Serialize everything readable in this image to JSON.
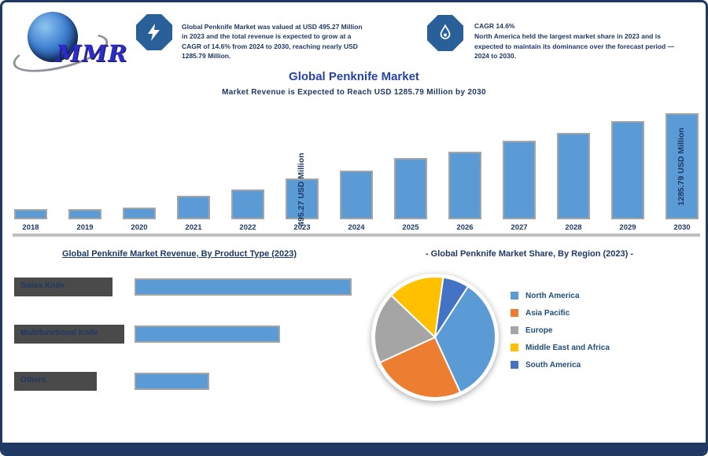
{
  "logo": {
    "text": "MMR"
  },
  "header": {
    "stat1": {
      "icon": "lightning-icon",
      "text": "Global Penknife Market was valued at USD 495.27 Million in 2023 and the total revenue is expected to grow at a CAGR of 14.6% from 2024 to 2030, reaching nearly USD 1285.79 Million."
    },
    "stat2": {
      "icon": "flame-icon",
      "line1": "CAGR 14.6%",
      "text": "North America held the largest market share in 2023 and is expected to maintain its dominance over the forecast period — 2024 to 2030."
    }
  },
  "title": "Global Penknife Market",
  "subtitle": "Market Revenue is Expected to Reach USD 1285.79 Million by 2030",
  "sections": {
    "left_title": "Global Penknife Market Revenue, By Product Type (2023)",
    "right_title": "- Global Penknife Market Share, By Region (2023) -"
  },
  "colors": {
    "bar_fill": "#5B9BD5",
    "bar_border": "#A5A5A5",
    "navy_text": "#1F3864",
    "title_blue": "#2743A5",
    "legend_text": "#1F4E79",
    "badge_blue": "#2A6099",
    "frame_navy": "#1F3864"
  },
  "chart_data": [
    {
      "type": "bar",
      "title": "Global Penknife Market",
      "subtitle": "Market Revenue is Expected to Reach USD 1285.79 Million by 2030",
      "categories": [
        "2018",
        "2019",
        "2020",
        "2021",
        "2022",
        "2023",
        "2024",
        "2025",
        "2026",
        "2027",
        "2028",
        "2029",
        "2030"
      ],
      "values": [
        124,
        125,
        143,
        286,
        362,
        495.27,
        590,
        743,
        819,
        952,
        1047,
        1190,
        1285.79
      ],
      "unit": "USD Million",
      "value_labels": {
        "2023": "495.27 USD Million",
        "2030": "1285.79 USD Million"
      },
      "ylim": [
        0,
        1300
      ],
      "bar_color": "#5B9BD5",
      "grid": false
    },
    {
      "type": "bar",
      "orientation": "horizontal",
      "title": "Global Penknife Market Revenue, By Product Type (2023)",
      "categories": [
        "Swiss Knife",
        "Multifunctional Knife",
        "Others"
      ],
      "values": [
        45,
        30,
        15
      ],
      "unit": "percent share (estimated from bar lengths, not labeled in image)",
      "bar_color": "#5B9BD5"
    },
    {
      "type": "pie",
      "title": "- Global Penknife Market Share, By Region (2023) -",
      "labels": [
        "North America",
        "Asia Pacific",
        "Europe",
        "Middle East and Africa",
        "South America"
      ],
      "values": [
        34,
        25,
        19,
        15,
        7
      ],
      "colors": [
        "#5B9BD5",
        "#ED7D31",
        "#A5A5A5",
        "#FFC000",
        "#4472C4"
      ],
      "start_angle_deg": 33,
      "legend_position": "right"
    }
  ]
}
